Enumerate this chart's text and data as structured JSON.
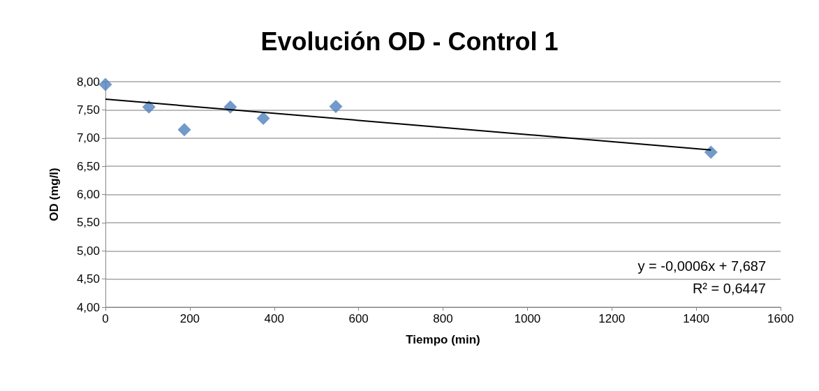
{
  "chart_data": {
    "type": "scatter",
    "title": "Evolución OD - Control 1",
    "xlabel": "Tiempo (min)",
    "ylabel": "OD (mg/l)",
    "x": [
      0,
      103,
      187,
      296,
      374,
      546,
      1435
    ],
    "series": [
      {
        "color": "#4f81bd",
        "marker": "diamond",
        "values": [
          7.95,
          7.55,
          7.15,
          7.55,
          7.35,
          7.56,
          6.75
        ]
      },
      {
        "type": "line",
        "color": "#000000",
        "marker": "none",
        "line_style": "solid",
        "x": [
          0,
          1435
        ],
        "values": [
          7.69,
          6.79
        ]
      }
    ],
    "xlim": [
      0,
      1600
    ],
    "xticks": [
      0,
      200,
      400,
      600,
      800,
      1000,
      1200,
      1400,
      1600
    ],
    "ylim": [
      4,
      8
    ],
    "yticks": [
      {
        "value": 4,
        "label": "4,00"
      },
      {
        "value": 4.5,
        "label": "4,50"
      },
      {
        "value": 5,
        "label": "5,00"
      },
      {
        "value": 5.5,
        "label": "5,50"
      },
      {
        "value": 6,
        "label": "6,00"
      },
      {
        "value": 6.5,
        "label": "6,50"
      },
      {
        "value": 7,
        "label": "7,00"
      },
      {
        "value": 7.5,
        "label": "7,50"
      },
      {
        "value": 8,
        "label": "8,00"
      }
    ],
    "grid": "y",
    "annotations": [
      "y = -0,0006x + 7,687",
      "R² = 0,6447"
    ]
  }
}
